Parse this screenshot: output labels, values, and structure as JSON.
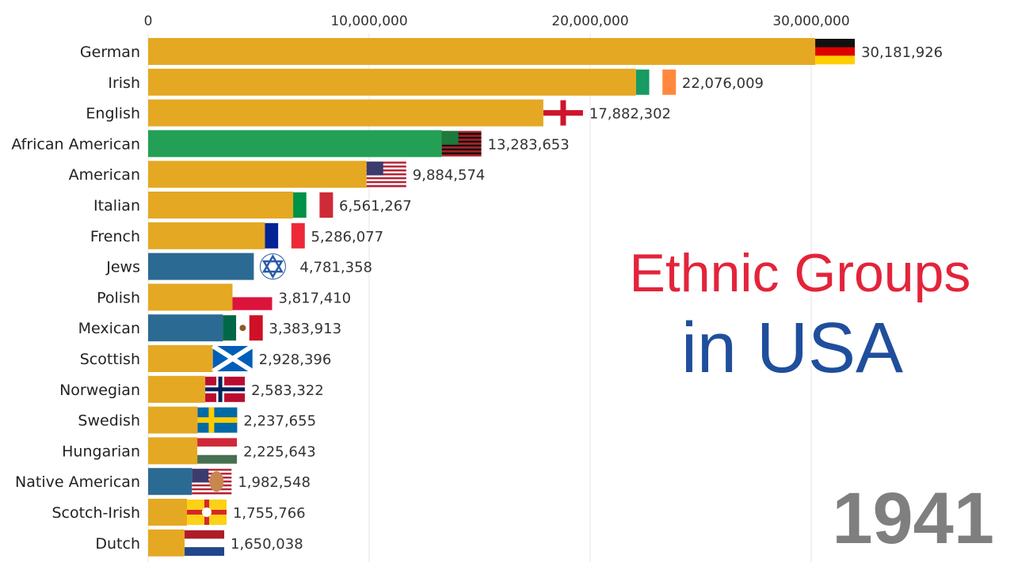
{
  "chart_data": {
    "type": "bar",
    "orientation": "horizontal",
    "title": "Ethnic Groups in USA",
    "title_line1": "Ethnic Groups",
    "title_line2": "in USA",
    "period": "1941",
    "xlim": [
      0,
      33000000
    ],
    "x_ticks": [
      0,
      10000000,
      20000000,
      30000000
    ],
    "x_tick_labels": [
      "0",
      "10,000,000",
      "20,000,000",
      "30,000,000"
    ],
    "gridlines": true,
    "categories": [
      "German",
      "Irish",
      "English",
      "African American",
      "American",
      "Italian",
      "French",
      "Jews",
      "Polish",
      "Mexican",
      "Scottish",
      "Norwegian",
      "Swedish",
      "Hungarian",
      "Native American",
      "Scotch-Irish",
      "Dutch"
    ],
    "values": [
      30181926,
      22076009,
      17882302,
      13283653,
      9884574,
      6561267,
      5286077,
      4781358,
      3817410,
      3383913,
      2928396,
      2583322,
      2237655,
      2225643,
      1982548,
      1755766,
      1650038
    ],
    "value_labels": [
      "30,181,926",
      "22,076,009",
      "17,882,302",
      "13,283,653",
      "9,884,574",
      "6,561,267",
      "5,286,077",
      "4,781,358",
      "3,817,410",
      "3,383,913",
      "2,928,396",
      "2,583,322",
      "2,237,655",
      "2,225,643",
      "1,982,548",
      "1,755,766",
      "1,650,038"
    ],
    "bar_colors": [
      "#e5a823",
      "#e5a823",
      "#e5a823",
      "#23a055",
      "#e5a823",
      "#e5a823",
      "#e5a823",
      "#2b6a93",
      "#e5a823",
      "#2b6a93",
      "#e5a823",
      "#e5a823",
      "#e5a823",
      "#e5a823",
      "#2b6a93",
      "#e5a823",
      "#e5a823"
    ],
    "flags": [
      "germany-flag-icon",
      "ireland-flag-icon",
      "england-flag-icon",
      "african-american-flag-icon",
      "usa-flag-icon",
      "italy-flag-icon",
      "france-flag-icon",
      "star-of-david-icon",
      "poland-flag-icon",
      "mexico-flag-icon",
      "scotland-flag-icon",
      "norway-flag-icon",
      "sweden-flag-icon",
      "hungary-flag-icon",
      "native-american-flag-icon",
      "ulster-flag-icon",
      "netherlands-flag-icon"
    ]
  },
  "colors": {
    "title_line1": "#e3243b",
    "title_line2": "#1f4e9c",
    "period": "#7f7f7f",
    "gridline": "#e6e6e6"
  }
}
